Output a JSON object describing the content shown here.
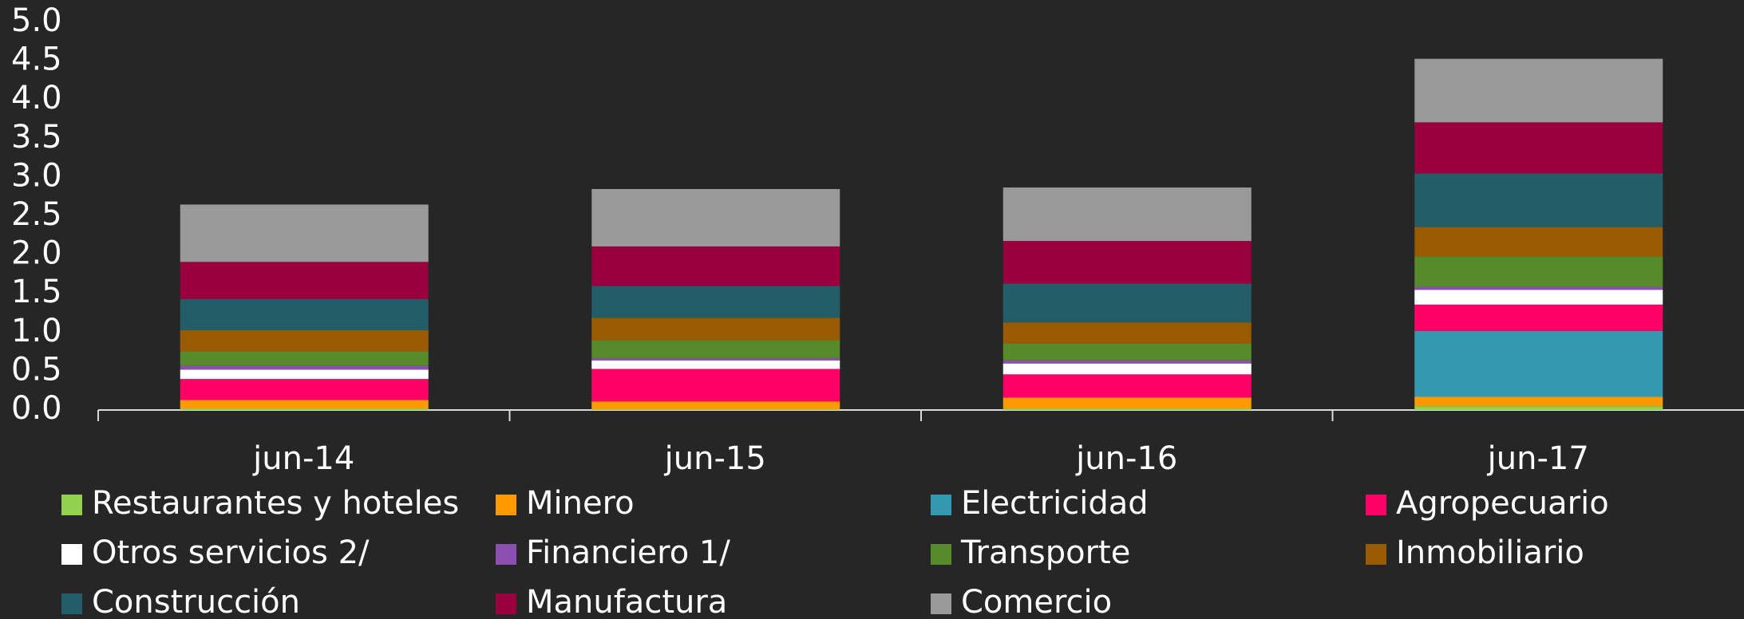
{
  "chart_data": {
    "type": "stacked_bar",
    "categories": [
      "jun-14",
      "jun-15",
      "jun-16",
      "jun-17"
    ],
    "series": [
      {
        "name": "Restaurantes y hoteles",
        "color": "#92d050",
        "values": [
          0.02,
          0.01,
          0.02,
          0.05
        ]
      },
      {
        "name": "Minero",
        "color": "#ff9900",
        "values": [
          0.11,
          0.1,
          0.14,
          0.12
        ]
      },
      {
        "name": "Electricidad",
        "color": "#3399b0",
        "values": [
          0,
          0,
          0,
          0.85
        ]
      },
      {
        "name": "Agropecuario",
        "color": "#ff0066",
        "values": [
          0.27,
          0.42,
          0.3,
          0.34
        ]
      },
      {
        "name": "Otros servicios 2/",
        "color": "#ffffff",
        "values": [
          0.12,
          0.11,
          0.14,
          0.19
        ]
      },
      {
        "name": "Financiero 1/",
        "color": "#8a4fb0",
        "values": [
          0.05,
          0.03,
          0.04,
          0.04
        ]
      },
      {
        "name": "Transporte",
        "color": "#568a2a",
        "values": [
          0.19,
          0.23,
          0.22,
          0.39
        ]
      },
      {
        "name": "Inmobiliario",
        "color": "#9a5a00",
        "values": [
          0.27,
          0.29,
          0.27,
          0.38
        ]
      },
      {
        "name": "Construcción",
        "color": "#235d68",
        "values": [
          0.4,
          0.41,
          0.5,
          0.69
        ]
      },
      {
        "name": "Manufactura",
        "color": "#99003d",
        "values": [
          0.48,
          0.51,
          0.55,
          0.66
        ]
      },
      {
        "name": "Comercio",
        "color": "#999999",
        "values": [
          0.74,
          0.74,
          0.69,
          0.82
        ]
      }
    ],
    "ylim": [
      0,
      5
    ],
    "yticks": [
      {
        "value": 0,
        "label": "0.0"
      },
      {
        "value": 0.5,
        "label": "0.5"
      },
      {
        "value": 1,
        "label": "1.0"
      },
      {
        "value": 1.5,
        "label": "1.5"
      },
      {
        "value": 2,
        "label": "2.0"
      },
      {
        "value": 2.5,
        "label": "2.5"
      },
      {
        "value": 3,
        "label": "3.0"
      },
      {
        "value": 3.5,
        "label": "3.5"
      },
      {
        "value": 4,
        "label": "4.0"
      },
      {
        "value": 4.5,
        "label": "4.5"
      },
      {
        "value": 5,
        "label": "5.0"
      }
    ],
    "grid": false,
    "legend": "bottom"
  }
}
